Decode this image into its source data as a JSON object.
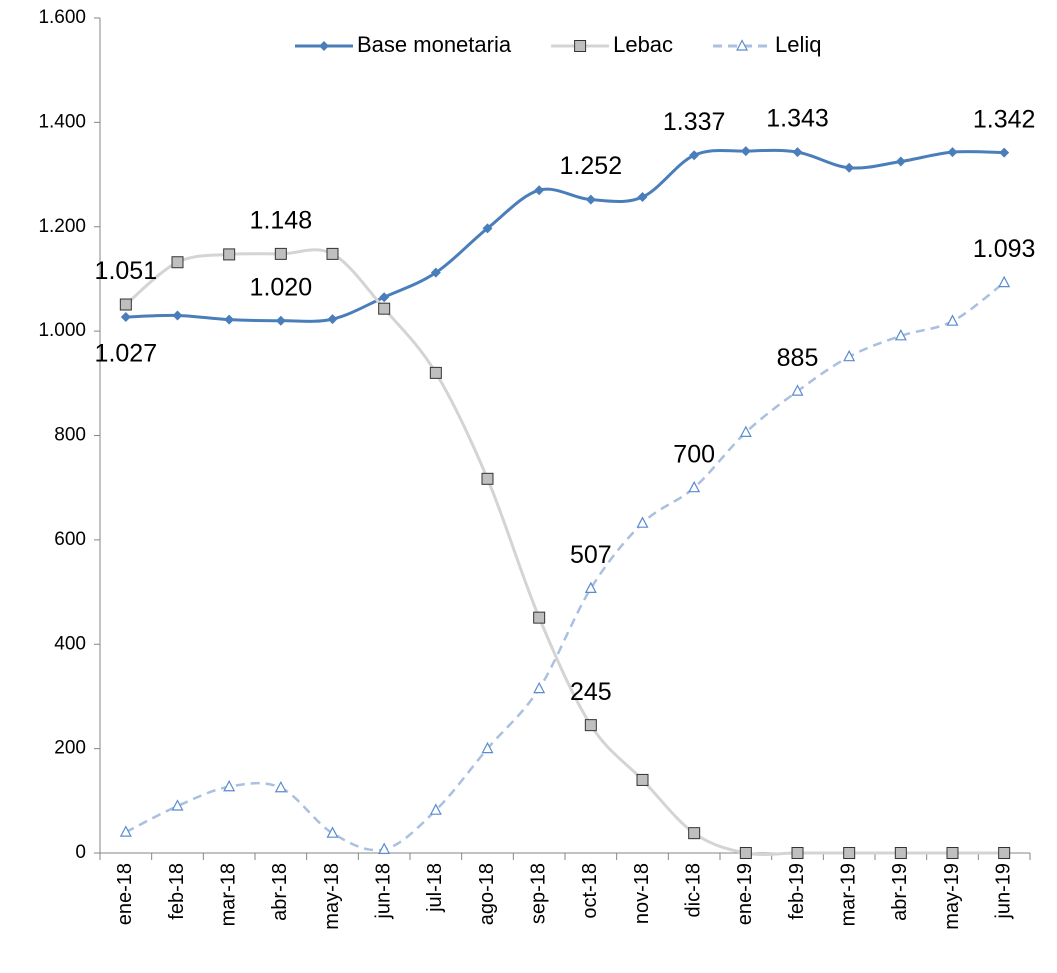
{
  "chart_data": {
    "type": "line",
    "categories": [
      "ene-18",
      "feb-18",
      "mar-18",
      "abr-18",
      "may-18",
      "jun-18",
      "jul-18",
      "ago-18",
      "sep-18",
      "oct-18",
      "nov-18",
      "dic-18",
      "ene-19",
      "feb-19",
      "mar-19",
      "abr-19",
      "may-19",
      "jun-19"
    ],
    "series": [
      {
        "name": "Base monetaria",
        "color": "#4a7ebb",
        "marker": "diamond",
        "dash": false,
        "values": [
          1027,
          1030,
          1022,
          1020,
          1023,
          1065,
          1112,
          1197,
          1270,
          1252,
          1257,
          1337,
          1345,
          1343,
          1313,
          1325,
          1343,
          1342
        ],
        "value_labels": [
          "1.027",
          null,
          null,
          "1.020",
          null,
          null,
          null,
          null,
          null,
          "1.252",
          null,
          "1.337",
          null,
          "1.343",
          null,
          null,
          null,
          "1.342"
        ]
      },
      {
        "name": "Lebac",
        "color": "#d4d4d4",
        "marker": "square",
        "dash": false,
        "values": [
          1051,
          1132,
          1147,
          1148,
          1148,
          1043,
          920,
          717,
          451,
          245,
          140,
          38,
          0,
          0,
          0,
          0,
          0,
          0
        ],
        "value_labels": [
          "1.051",
          null,
          null,
          "1.148",
          null,
          null,
          null,
          null,
          null,
          "245",
          null,
          null,
          null,
          null,
          null,
          null,
          null,
          null
        ]
      },
      {
        "name": "Leliq",
        "color": "#a9c0e0",
        "marker": "triangle",
        "dash": true,
        "values": [
          40,
          90,
          127,
          125,
          38,
          7,
          82,
          200,
          315,
          507,
          632,
          700,
          806,
          885,
          951,
          991,
          1019,
          1093
        ],
        "value_labels": [
          null,
          null,
          null,
          null,
          null,
          null,
          null,
          null,
          null,
          "507",
          null,
          "700",
          null,
          "885",
          null,
          null,
          null,
          "1.093"
        ]
      }
    ],
    "ylim": [
      0,
      1600
    ],
    "yticks": [
      0,
      200,
      400,
      600,
      800,
      {
        "value": 1000,
        "label": "1.000"
      },
      {
        "value": 1200,
        "label": "1.200"
      },
      {
        "value": 1400,
        "label": "1.400"
      },
      {
        "value": 1600,
        "label": "1.600"
      }
    ],
    "legend": "top"
  }
}
